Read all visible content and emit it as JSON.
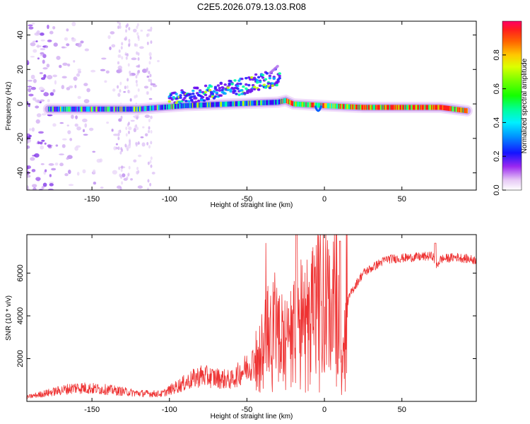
{
  "title": "C2E5.2026.079.13.03.R08",
  "chart_data": [
    {
      "type": "heatmap",
      "name": "spectrogram",
      "xlabel": "Height of straight line (km)",
      "ylabel": "Frequency (Hz)",
      "xlim": [
        -192,
        98
      ],
      "ylim": [
        -50,
        48
      ],
      "xticks": [
        -150,
        -100,
        -50,
        0,
        50
      ],
      "yticks": [
        -40,
        -20,
        0,
        20,
        40
      ],
      "colorbar": {
        "label": "Normalized spectral amplitude",
        "range": [
          0,
          1
        ],
        "ticks": [
          "0.0",
          "0.2",
          "0.4",
          "0.6",
          "0.8"
        ],
        "tick_values": [
          0,
          0.2,
          0.4,
          0.6,
          0.8
        ]
      },
      "ridges": [
        {
          "name": "main-trace",
          "points": [
            [
              -178,
              -3
            ],
            [
              -150,
              -3
            ],
            [
              -120,
              -3
            ],
            [
              -105,
              -2
            ],
            [
              -90,
              -1
            ],
            [
              -60,
              0
            ],
            [
              -30,
              1
            ],
            [
              -25,
              2
            ],
            [
              -20,
              0
            ],
            [
              0,
              -1
            ],
            [
              25,
              -2
            ],
            [
              50,
              -2
            ],
            [
              75,
              -2
            ],
            [
              92,
              -4
            ]
          ]
        },
        {
          "name": "upper-trace",
          "points": [
            [
              -100,
              2
            ],
            [
              -85,
              5
            ],
            [
              -65,
              8
            ],
            [
              -45,
              12
            ],
            [
              -35,
              14
            ],
            [
              -30,
              16
            ],
            [
              -28,
              17
            ]
          ]
        },
        {
          "name": "faint-branch",
          "points": [
            [
              -35,
              18
            ],
            [
              -30,
              22
            ]
          ]
        }
      ]
    },
    {
      "type": "line",
      "name": "snr",
      "xlabel": "Height of straight line (km)",
      "ylabel": "SNR (10 * v/v)",
      "xlim": [
        -192,
        98
      ],
      "ylim": [
        0,
        7800
      ],
      "xticks": [
        -150,
        -100,
        -50,
        0,
        50
      ],
      "yticks": [
        2000,
        4000,
        6000
      ],
      "color": "#ee3333",
      "envelope": [
        [
          -192,
          200
        ],
        [
          -175,
          450
        ],
        [
          -160,
          650
        ],
        [
          -140,
          550
        ],
        [
          -120,
          380
        ],
        [
          -105,
          350
        ],
        [
          -95,
          700
        ],
        [
          -80,
          1200
        ],
        [
          -60,
          1000
        ],
        [
          -50,
          1600
        ],
        [
          -40,
          2200
        ],
        [
          -35,
          3300
        ],
        [
          -30,
          3200
        ],
        [
          -25,
          2500
        ],
        [
          -20,
          3000
        ],
        [
          -15,
          3500
        ],
        [
          -10,
          4000
        ],
        [
          -5,
          4200
        ],
        [
          5,
          4400
        ],
        [
          10,
          4300
        ],
        [
          12,
          1500
        ],
        [
          14,
          4500
        ],
        [
          18,
          5200
        ],
        [
          25,
          6000
        ],
        [
          40,
          6650
        ],
        [
          60,
          6750
        ],
        [
          70,
          6800
        ],
        [
          72,
          6300
        ],
        [
          75,
          6650
        ],
        [
          85,
          6750
        ],
        [
          98,
          6600
        ]
      ]
    }
  ]
}
